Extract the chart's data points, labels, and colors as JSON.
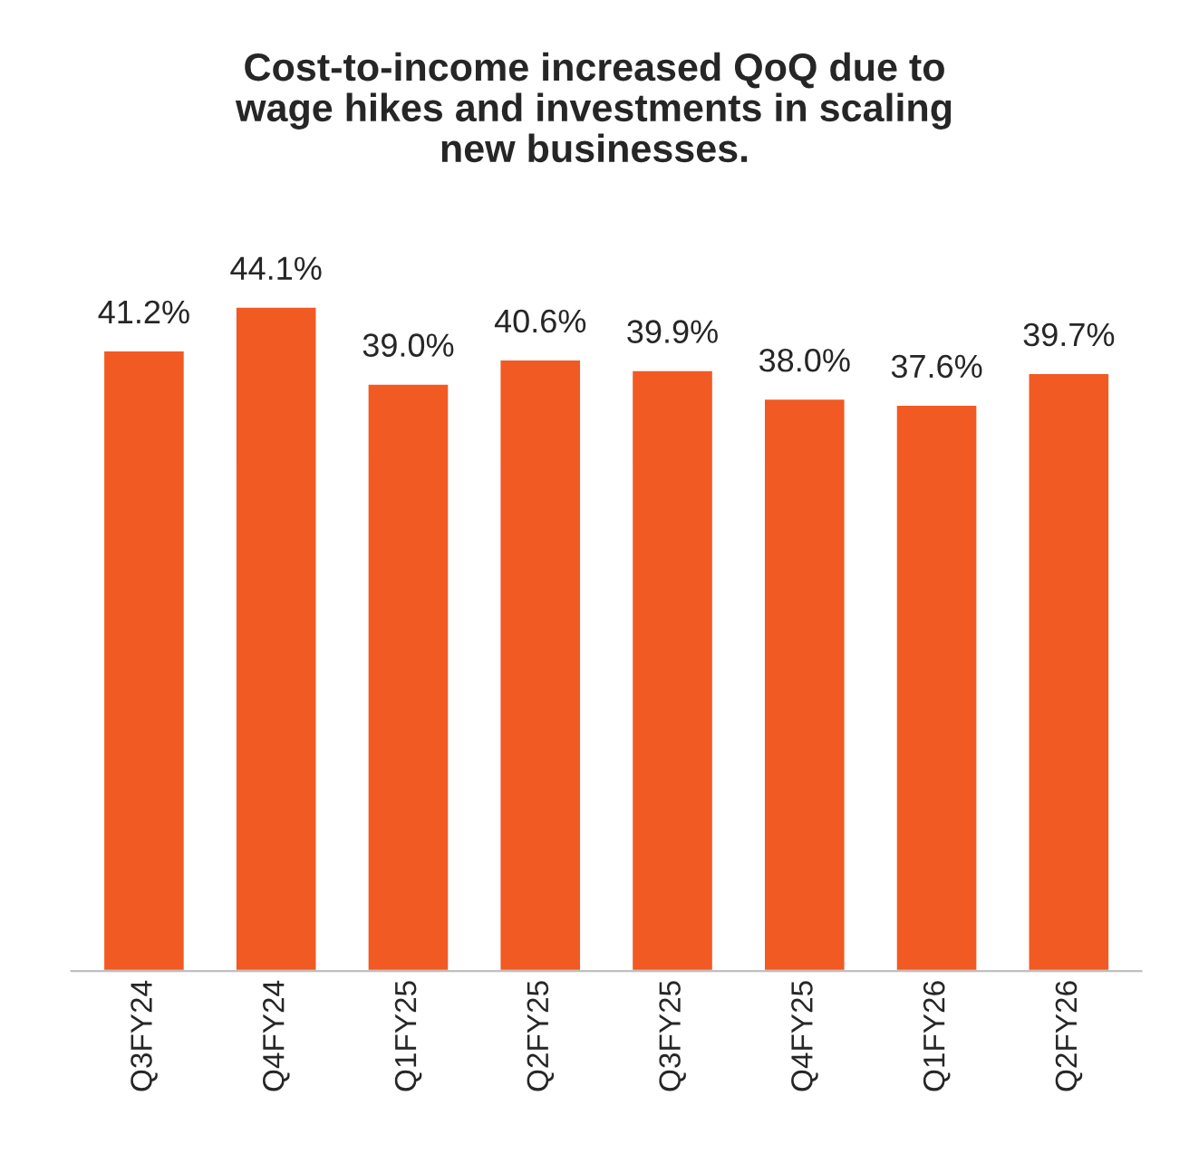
{
  "chart_data": {
    "type": "bar",
    "title": "Cost-to-income increased QoQ due to\nwage hikes and investments in scaling\nnew businesses.",
    "categories": [
      "Q3FY24",
      "Q4FY24",
      "Q1FY25",
      "Q2FY25",
      "Q3FY25",
      "Q4FY25",
      "Q1FY26",
      "Q2FY26"
    ],
    "values": [
      41.2,
      44.1,
      39.0,
      40.6,
      39.9,
      38.0,
      37.6,
      39.7
    ],
    "value_labels": [
      "41.2%",
      "44.1%",
      "39.0%",
      "40.6%",
      "39.9%",
      "38.0%",
      "37.6%",
      "39.7%"
    ],
    "color": "#f15a22",
    "tick_labels": "x",
    "grid": false,
    "legend": false
  }
}
